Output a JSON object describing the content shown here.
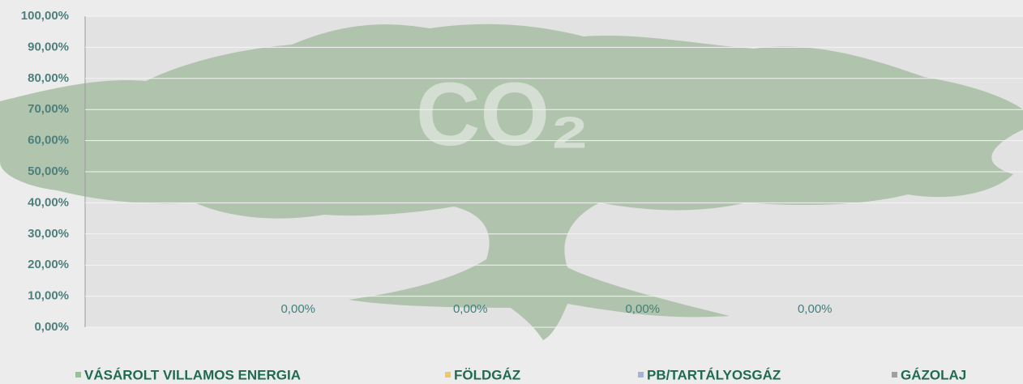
{
  "chart_data": {
    "type": "bar",
    "background_text": "CO₂",
    "categories": [
      null
    ],
    "series": [
      {
        "name": "VÁSÁROLT VILLAMOS ENERGIA",
        "color": "#8fc78f",
        "values": [
          0
        ],
        "value_labels": [
          "0,00%"
        ]
      },
      {
        "name": "FÖLDGÁZ",
        "color": "#f0c860",
        "values": [
          0
        ],
        "value_labels": [
          "0,00%"
        ]
      },
      {
        "name": "PB/TARTÁLYOSGÁZ",
        "color": "#9fb4d8",
        "values": [
          0
        ],
        "value_labels": [
          "0,00%"
        ]
      },
      {
        "name": "GÁZOLAJ",
        "color": "#a0a0a0",
        "values": [
          0
        ],
        "value_labels": [
          "0,00%"
        ]
      }
    ],
    "ylim": [
      0,
      100
    ],
    "yticks": [
      {
        "value": 0,
        "label": "0,00%"
      },
      {
        "value": 10,
        "label": "10,00%"
      },
      {
        "value": 20,
        "label": "20,00%"
      },
      {
        "value": 30,
        "label": "30,00%"
      },
      {
        "value": 40,
        "label": "40,00%"
      },
      {
        "value": 50,
        "label": "50,00%"
      },
      {
        "value": 60,
        "label": "60,00%"
      },
      {
        "value": 70,
        "label": "70,00%"
      },
      {
        "value": 80,
        "label": "80,00%"
      },
      {
        "value": 90,
        "label": "90,00%"
      },
      {
        "value": 100,
        "label": "100,00%"
      }
    ],
    "grid": true,
    "legend": "bottom"
  }
}
